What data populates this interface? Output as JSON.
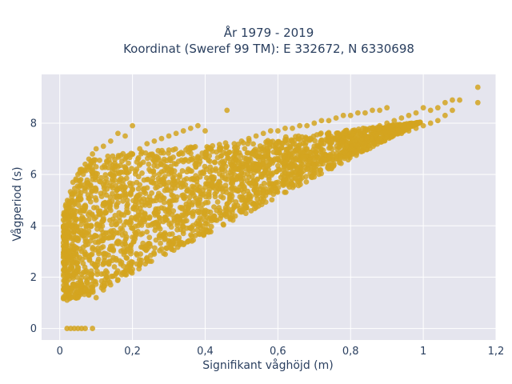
{
  "chart_data": {
    "type": "scatter",
    "title_line1": "År 1979 - 2019",
    "title_line2": "Koordinat (Sweref 99 TM): E 332672, N 6330698",
    "xlabel": "Signifikant våghöjd (m)",
    "ylabel": "Vågperiod (s)",
    "xlim": [
      -0.05,
      1.2
    ],
    "ylim": [
      -0.45,
      9.9
    ],
    "xticks": [
      0,
      0.2,
      0.4,
      0.6,
      0.8,
      1,
      1.2
    ],
    "xtick_labels": [
      "0",
      "0,2",
      "0,4",
      "0,6",
      "0,8",
      "1",
      "1,2"
    ],
    "yticks": [
      0,
      2,
      4,
      6,
      8
    ],
    "ytick_labels": [
      "0",
      "2",
      "4",
      "6",
      "8"
    ],
    "grid": true,
    "legend": "none",
    "marker_color": "#d4a420",
    "plot_bg": "#e5e5ee",
    "series": [
      {
        "values_note_free": true,
        "points": [
          [
            0.02,
            1.1
          ],
          [
            0.02,
            1.6
          ],
          [
            0.02,
            2.0
          ],
          [
            0.02,
            2.8
          ],
          [
            0.03,
            1.2
          ],
          [
            0.03,
            2.4
          ],
          [
            0.03,
            3.0
          ],
          [
            0.03,
            4.0
          ],
          [
            0.04,
            1.3
          ],
          [
            0.04,
            2.1
          ],
          [
            0.04,
            3.2
          ],
          [
            0.04,
            4.6
          ],
          [
            0.04,
            5.3
          ],
          [
            0.05,
            1.2
          ],
          [
            0.05,
            2.6
          ],
          [
            0.05,
            3.8
          ],
          [
            0.05,
            5.0
          ],
          [
            0.05,
            6.0
          ],
          [
            0.06,
            1.4
          ],
          [
            0.06,
            3.0
          ],
          [
            0.06,
            4.2
          ],
          [
            0.06,
            5.6
          ],
          [
            0.06,
            6.2
          ],
          [
            0.07,
            1.5
          ],
          [
            0.07,
            2.2
          ],
          [
            0.07,
            3.5
          ],
          [
            0.07,
            4.8
          ],
          [
            0.07,
            6.4
          ],
          [
            0.08,
            1.3
          ],
          [
            0.08,
            2.8
          ],
          [
            0.08,
            4.0
          ],
          [
            0.08,
            5.5
          ],
          [
            0.08,
            6.6
          ],
          [
            0.09,
            1.6
          ],
          [
            0.09,
            3.1
          ],
          [
            0.09,
            4.4
          ],
          [
            0.09,
            5.8
          ],
          [
            0.09,
            6.8
          ],
          [
            0.1,
            1.2
          ],
          [
            0.1,
            2.4
          ],
          [
            0.1,
            3.6
          ],
          [
            0.1,
            5.0
          ],
          [
            0.1,
            6.3
          ],
          [
            0.1,
            7.0
          ],
          [
            0.12,
            1.5
          ],
          [
            0.12,
            2.9
          ],
          [
            0.12,
            4.3
          ],
          [
            0.12,
            5.6
          ],
          [
            0.12,
            7.1
          ],
          [
            0.14,
            1.7
          ],
          [
            0.14,
            3.2
          ],
          [
            0.14,
            4.6
          ],
          [
            0.14,
            6.0
          ],
          [
            0.14,
            7.3
          ],
          [
            0.16,
            1.9
          ],
          [
            0.16,
            3.4
          ],
          [
            0.16,
            4.9
          ],
          [
            0.16,
            6.3
          ],
          [
            0.16,
            7.6
          ],
          [
            0.18,
            2.1
          ],
          [
            0.18,
            3.7
          ],
          [
            0.18,
            5.2
          ],
          [
            0.18,
            6.6
          ],
          [
            0.18,
            7.5
          ],
          [
            0.2,
            2.3
          ],
          [
            0.2,
            3.9
          ],
          [
            0.2,
            5.4
          ],
          [
            0.2,
            6.8
          ],
          [
            0.2,
            7.9
          ],
          [
            0.22,
            2.5
          ],
          [
            0.22,
            4.1
          ],
          [
            0.22,
            5.6
          ],
          [
            0.22,
            7.0
          ],
          [
            0.24,
            2.7
          ],
          [
            0.24,
            4.3
          ],
          [
            0.24,
            5.8
          ],
          [
            0.24,
            7.2
          ],
          [
            0.26,
            2.9
          ],
          [
            0.26,
            4.5
          ],
          [
            0.26,
            6.0
          ],
          [
            0.26,
            7.3
          ],
          [
            0.28,
            3.1
          ],
          [
            0.28,
            4.7
          ],
          [
            0.28,
            6.1
          ],
          [
            0.28,
            7.4
          ],
          [
            0.3,
            3.3
          ],
          [
            0.3,
            4.9
          ],
          [
            0.3,
            6.2
          ],
          [
            0.3,
            7.5
          ],
          [
            0.32,
            3.5
          ],
          [
            0.32,
            5.0
          ],
          [
            0.32,
            6.4
          ],
          [
            0.32,
            7.6
          ],
          [
            0.34,
            3.7
          ],
          [
            0.34,
            5.2
          ],
          [
            0.34,
            6.5
          ],
          [
            0.34,
            7.7
          ],
          [
            0.36,
            3.9
          ],
          [
            0.36,
            5.3
          ],
          [
            0.36,
            6.6
          ],
          [
            0.36,
            7.8
          ],
          [
            0.38,
            4.0
          ],
          [
            0.38,
            5.4
          ],
          [
            0.38,
            6.7
          ],
          [
            0.38,
            7.9
          ],
          [
            0.4,
            4.2
          ],
          [
            0.4,
            5.5
          ],
          [
            0.4,
            6.8
          ],
          [
            0.4,
            7.7
          ],
          [
            0.42,
            4.3
          ],
          [
            0.42,
            5.6
          ],
          [
            0.42,
            6.9
          ],
          [
            0.44,
            4.5
          ],
          [
            0.44,
            5.7
          ],
          [
            0.44,
            7.0
          ],
          [
            0.46,
            4.6
          ],
          [
            0.46,
            5.8
          ],
          [
            0.46,
            7.1
          ],
          [
            0.46,
            8.5
          ],
          [
            0.48,
            4.8
          ],
          [
            0.48,
            6.0
          ],
          [
            0.48,
            7.2
          ],
          [
            0.5,
            5.0
          ],
          [
            0.5,
            6.1
          ],
          [
            0.5,
            7.3
          ],
          [
            0.52,
            5.1
          ],
          [
            0.52,
            6.2
          ],
          [
            0.52,
            7.4
          ],
          [
            0.54,
            5.3
          ],
          [
            0.54,
            6.3
          ],
          [
            0.54,
            7.5
          ],
          [
            0.56,
            5.4
          ],
          [
            0.56,
            6.4
          ],
          [
            0.56,
            7.6
          ],
          [
            0.58,
            5.5
          ],
          [
            0.58,
            6.5
          ],
          [
            0.58,
            7.7
          ],
          [
            0.6,
            5.7
          ],
          [
            0.6,
            6.6
          ],
          [
            0.6,
            7.7
          ],
          [
            0.62,
            5.8
          ],
          [
            0.62,
            6.7
          ],
          [
            0.62,
            7.8
          ],
          [
            0.64,
            6.0
          ],
          [
            0.64,
            6.8
          ],
          [
            0.64,
            7.8
          ],
          [
            0.66,
            6.1
          ],
          [
            0.66,
            6.9
          ],
          [
            0.66,
            7.9
          ],
          [
            0.68,
            6.2
          ],
          [
            0.68,
            7.0
          ],
          [
            0.68,
            7.9
          ],
          [
            0.7,
            6.4
          ],
          [
            0.7,
            7.1
          ],
          [
            0.7,
            8.0
          ],
          [
            0.72,
            6.5
          ],
          [
            0.72,
            7.2
          ],
          [
            0.72,
            8.1
          ],
          [
            0.74,
            6.6
          ],
          [
            0.74,
            7.3
          ],
          [
            0.74,
            8.1
          ],
          [
            0.76,
            6.7
          ],
          [
            0.76,
            7.4
          ],
          [
            0.76,
            8.2
          ],
          [
            0.78,
            6.9
          ],
          [
            0.78,
            7.4
          ],
          [
            0.78,
            8.3
          ],
          [
            0.8,
            7.0
          ],
          [
            0.8,
            7.5
          ],
          [
            0.8,
            8.3
          ],
          [
            0.82,
            7.1
          ],
          [
            0.82,
            7.6
          ],
          [
            0.82,
            8.4
          ],
          [
            0.84,
            7.2
          ],
          [
            0.84,
            7.7
          ],
          [
            0.84,
            8.4
          ],
          [
            0.86,
            7.3
          ],
          [
            0.86,
            7.8
          ],
          [
            0.86,
            8.5
          ],
          [
            0.88,
            7.4
          ],
          [
            0.88,
            7.9
          ],
          [
            0.88,
            8.5
          ],
          [
            0.9,
            7.5
          ],
          [
            0.9,
            8.0
          ],
          [
            0.9,
            8.6
          ],
          [
            0.92,
            7.6
          ],
          [
            0.92,
            8.1
          ],
          [
            0.94,
            7.6
          ],
          [
            0.94,
            8.2
          ],
          [
            0.96,
            7.7
          ],
          [
            0.96,
            8.3
          ],
          [
            0.98,
            7.8
          ],
          [
            0.98,
            8.4
          ],
          [
            1.0,
            7.9
          ],
          [
            1.0,
            8.6
          ],
          [
            1.02,
            8.0
          ],
          [
            1.02,
            8.5
          ],
          [
            1.04,
            8.1
          ],
          [
            1.04,
            8.6
          ],
          [
            1.06,
            8.3
          ],
          [
            1.06,
            8.8
          ],
          [
            1.08,
            8.5
          ],
          [
            1.08,
            8.9
          ],
          [
            1.1,
            8.9
          ],
          [
            1.15,
            9.4
          ],
          [
            1.15,
            8.8
          ],
          [
            0.02,
            0
          ],
          [
            0.03,
            0
          ],
          [
            0.04,
            0
          ],
          [
            0.05,
            0
          ],
          [
            0.06,
            0
          ],
          [
            0.07,
            0
          ],
          [
            0.09,
            0
          ]
        ]
      }
    ]
  }
}
